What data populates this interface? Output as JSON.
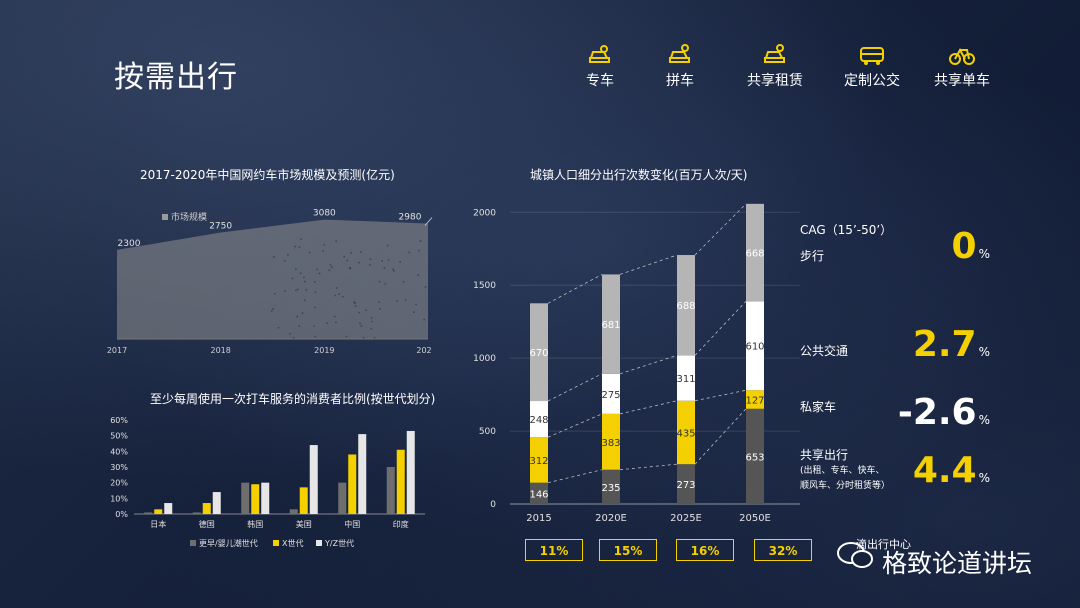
{
  "page_title": "按需出行",
  "modes": [
    {
      "label": "专车",
      "icon": "car-driver-icon"
    },
    {
      "label": "拼车",
      "icon": "carpool-icon"
    },
    {
      "label": "共享租赁",
      "icon": "car-rental-icon"
    },
    {
      "label": "定制公交",
      "icon": "bus-icon"
    },
    {
      "label": "共享单车",
      "icon": "bicycle-icon"
    }
  ],
  "colors": {
    "accent": "#f5d000",
    "gray": "#9a9a9a",
    "white": "#ffffff",
    "dark": "#555555"
  },
  "chart_data": [
    {
      "type": "area",
      "title": "2017-2020年中国网约车市场规模及预测(亿元)",
      "legend": [
        "市场规模"
      ],
      "categories": [
        "2017",
        "2018",
        "2019",
        "202"
      ],
      "series": [
        {
          "name": "市场规模",
          "values": [
            2300,
            2750,
            3080,
            2980
          ]
        }
      ],
      "data_labels": [
        "2300",
        "2750",
        "3080",
        "2980"
      ],
      "ylim": [
        0,
        3200
      ]
    },
    {
      "type": "bar",
      "title": "至少每周使用一次打车服务的消费者比例(按世代划分)",
      "categories": [
        "日本",
        "德国",
        "韩国",
        "美国",
        "中国",
        "印度"
      ],
      "yticks": [
        "60%",
        "50%",
        "40%",
        "30%",
        "20%",
        "10%",
        "0%"
      ],
      "ylim": [
        0,
        60
      ],
      "series": [
        {
          "name": "更早/婴儿潮世代",
          "values": [
            1,
            1,
            20,
            3,
            20,
            30
          ]
        },
        {
          "name": "X世代",
          "values": [
            3,
            7,
            19,
            17,
            38,
            41
          ]
        },
        {
          "name": "Y/Z世代",
          "values": [
            7,
            14,
            20,
            44,
            51,
            53
          ]
        }
      ]
    },
    {
      "type": "bar",
      "stacked": true,
      "title": "城镇人口细分出行次数变化(百万人次/天)",
      "categories": [
        "2015",
        "2020E",
        "2025E",
        "2050E"
      ],
      "yticks": [
        "2000",
        "1500",
        "1000",
        "500",
        "0"
      ],
      "ylim": [
        0,
        2050
      ],
      "series": [
        {
          "name": "共享出行",
          "values": [
            146,
            235,
            273,
            653
          ]
        },
        {
          "name": "私家车",
          "values": [
            312,
            383,
            435,
            127
          ]
        },
        {
          "name": "公共交通",
          "values": [
            248,
            275,
            311,
            610
          ]
        },
        {
          "name": "步行",
          "values": [
            670,
            681,
            688,
            668
          ]
        }
      ],
      "cagr": [
        "11%",
        "15%",
        "16%",
        "32%"
      ]
    }
  ],
  "cagr_panel": {
    "header": "CAG（15’-50’）",
    "items": [
      {
        "label": "步行",
        "value": "0",
        "unit": "%",
        "color": "#f5d000"
      },
      {
        "label": "公共交通",
        "value": "2.7",
        "unit": "%",
        "color": "#f5d000"
      },
      {
        "label": "私家车",
        "value": "-2.6",
        "unit": "%",
        "color": "#ffffff"
      },
      {
        "label": "共享出行",
        "value": "4.4",
        "unit": "%",
        "color": "#f5d000"
      }
    ],
    "shared_sub": [
      "(出租、专车、快车、",
      "顺风车、分时租赁等）"
    ]
  },
  "watermark": "格致论道讲坛",
  "watermark_small": "滴出行中心"
}
